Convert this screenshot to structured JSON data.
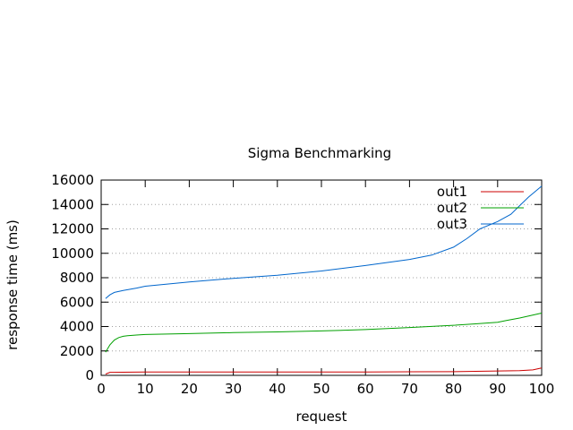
{
  "chart_data": {
    "type": "line",
    "title": "Sigma Benchmarking",
    "xlabel": "request",
    "ylabel": "response time (ms)",
    "xlim": [
      0,
      100
    ],
    "ylim": [
      0,
      16000
    ],
    "x_ticks": [
      0,
      10,
      20,
      30,
      40,
      50,
      60,
      70,
      80,
      90,
      100
    ],
    "y_ticks": [
      0,
      2000,
      4000,
      6000,
      8000,
      10000,
      12000,
      14000,
      16000
    ],
    "grid": "horizontal dotted",
    "legend_position": "top-right",
    "series": [
      {
        "name": "out1",
        "color": "#cc0000",
        "x": [
          1,
          2,
          5,
          10,
          20,
          30,
          40,
          50,
          60,
          70,
          80,
          85,
          90,
          95,
          98,
          100
        ],
        "y": [
          100,
          250,
          260,
          270,
          270,
          270,
          270,
          280,
          280,
          290,
          300,
          330,
          360,
          380,
          450,
          600
        ]
      },
      {
        "name": "out2",
        "color": "#00a000",
        "x": [
          1,
          2,
          3,
          4,
          5,
          6,
          8,
          10,
          20,
          30,
          40,
          50,
          60,
          70,
          80,
          85,
          90,
          92,
          95,
          100
        ],
        "y": [
          1900,
          2500,
          2900,
          3100,
          3200,
          3250,
          3300,
          3350,
          3420,
          3500,
          3560,
          3640,
          3750,
          3920,
          4100,
          4220,
          4350,
          4500,
          4700,
          5100
        ]
      },
      {
        "name": "out3",
        "color": "#0066cc",
        "x": [
          1,
          2,
          3,
          5,
          8,
          10,
          20,
          30,
          40,
          50,
          60,
          70,
          75,
          80,
          83,
          86,
          90,
          93,
          95,
          97,
          100
        ],
        "y": [
          6300,
          6600,
          6800,
          6950,
          7150,
          7300,
          7650,
          7950,
          8200,
          8550,
          9000,
          9500,
          9850,
          10500,
          11200,
          12000,
          12600,
          13200,
          13900,
          14600,
          15500
        ]
      }
    ]
  }
}
